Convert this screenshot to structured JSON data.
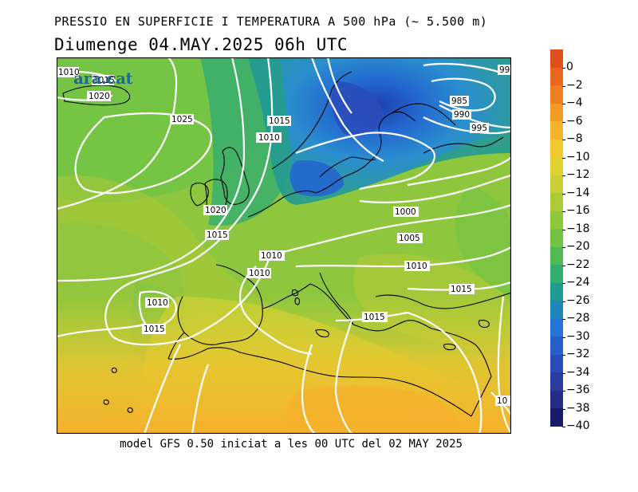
{
  "header": {
    "title": "PRESSIO EN SUPERFICIE I TEMPERATURA A 500 hPa (~ 5.500 m)",
    "subtitle": "Diumenge  04.MAY.2025 06h UTC"
  },
  "footer": {
    "text": "model GFS 0.50 iniciat a les 00 UTC del 02 MAY 2025"
  },
  "logo": {
    "text": "ara.cat",
    "color": "#1f6a8e"
  },
  "legend": {
    "labels": [
      "0",
      "−2",
      "−4",
      "−6",
      "−8",
      "−10",
      "−12",
      "−14",
      "−16",
      "−18",
      "−20",
      "−22",
      "−24",
      "−26",
      "−28",
      "−30",
      "−32",
      "−34",
      "−36",
      "−38",
      "−40"
    ],
    "colors": [
      "#e0501c",
      "#e8661e",
      "#ee7e22",
      "#f29a28",
      "#f5b42e",
      "#f3c831",
      "#e2d133",
      "#c9cf34",
      "#acc937",
      "#8ec73d",
      "#72c345",
      "#52b954",
      "#34ad70",
      "#229a94",
      "#2086ba",
      "#2374d6",
      "#2760cd",
      "#2a4cb8",
      "#2a3ca0",
      "#262c86",
      "#1a1a6a"
    ],
    "extra_label": "−40"
  },
  "map": {
    "isobar_labels": [
      {
        "text": "1010"
      },
      {
        "text": "1015"
      },
      {
        "text": "1020"
      },
      {
        "text": "1025"
      },
      {
        "text": "1015"
      },
      {
        "text": "1010"
      },
      {
        "text": "1020"
      },
      {
        "text": "1015"
      },
      {
        "text": "1010"
      },
      {
        "text": "1010"
      },
      {
        "text": "1010"
      },
      {
        "text": "1015"
      },
      {
        "text": "1000"
      },
      {
        "text": "1005"
      },
      {
        "text": "1010"
      },
      {
        "text": "1015"
      },
      {
        "text": "1015"
      },
      {
        "text": "985"
      },
      {
        "text": "990"
      },
      {
        "text": "995"
      },
      {
        "text": "99"
      },
      {
        "text": "10"
      }
    ]
  }
}
